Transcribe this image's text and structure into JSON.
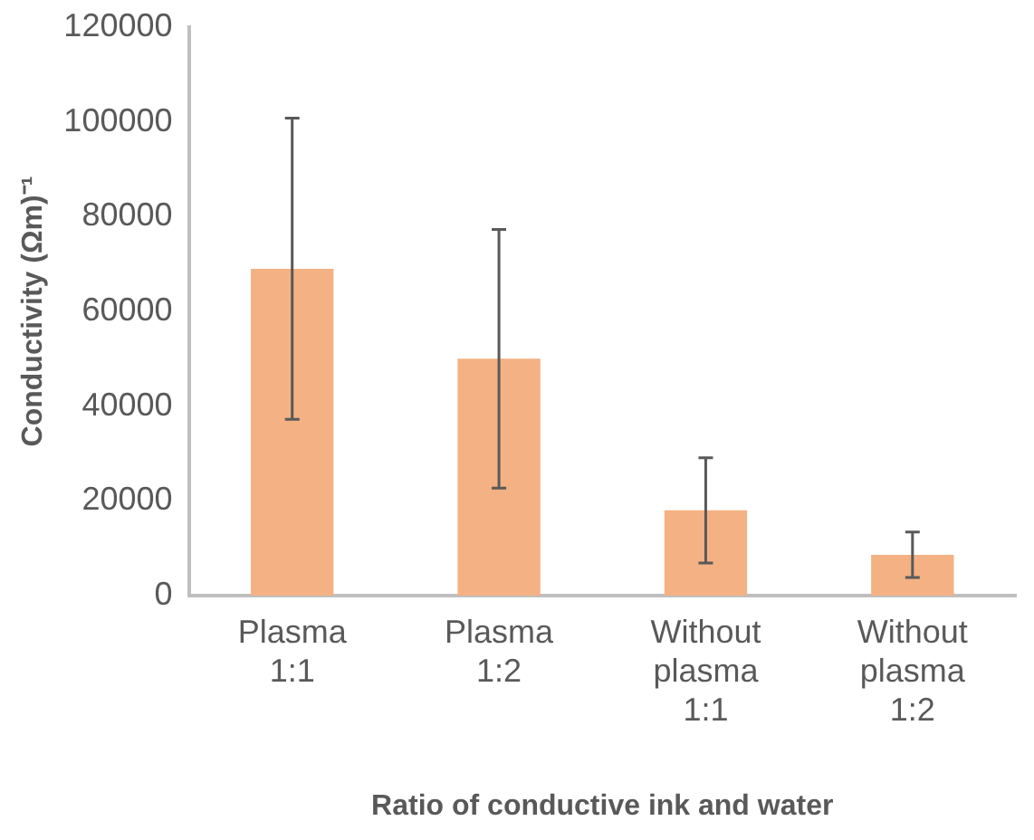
{
  "chart_data": {
    "type": "bar",
    "xlabel": "Ratio of conductive ink and water",
    "ylabel": "Conductivity (Ωm)⁻¹",
    "categories": [
      "Plasma 1:1",
      "Plasma 1:2",
      "Without plasma 1:1",
      "Without plasma 1:2"
    ],
    "values": [
      69000,
      50000,
      18000,
      8600
    ],
    "errors": [
      31800,
      27300,
      11100,
      4800
    ],
    "color": "#f4b183",
    "ylim": [
      0,
      120000
    ],
    "yticks": [
      0,
      20000,
      40000,
      60000,
      80000,
      100000,
      120000
    ],
    "grid": false,
    "legend": false
  }
}
